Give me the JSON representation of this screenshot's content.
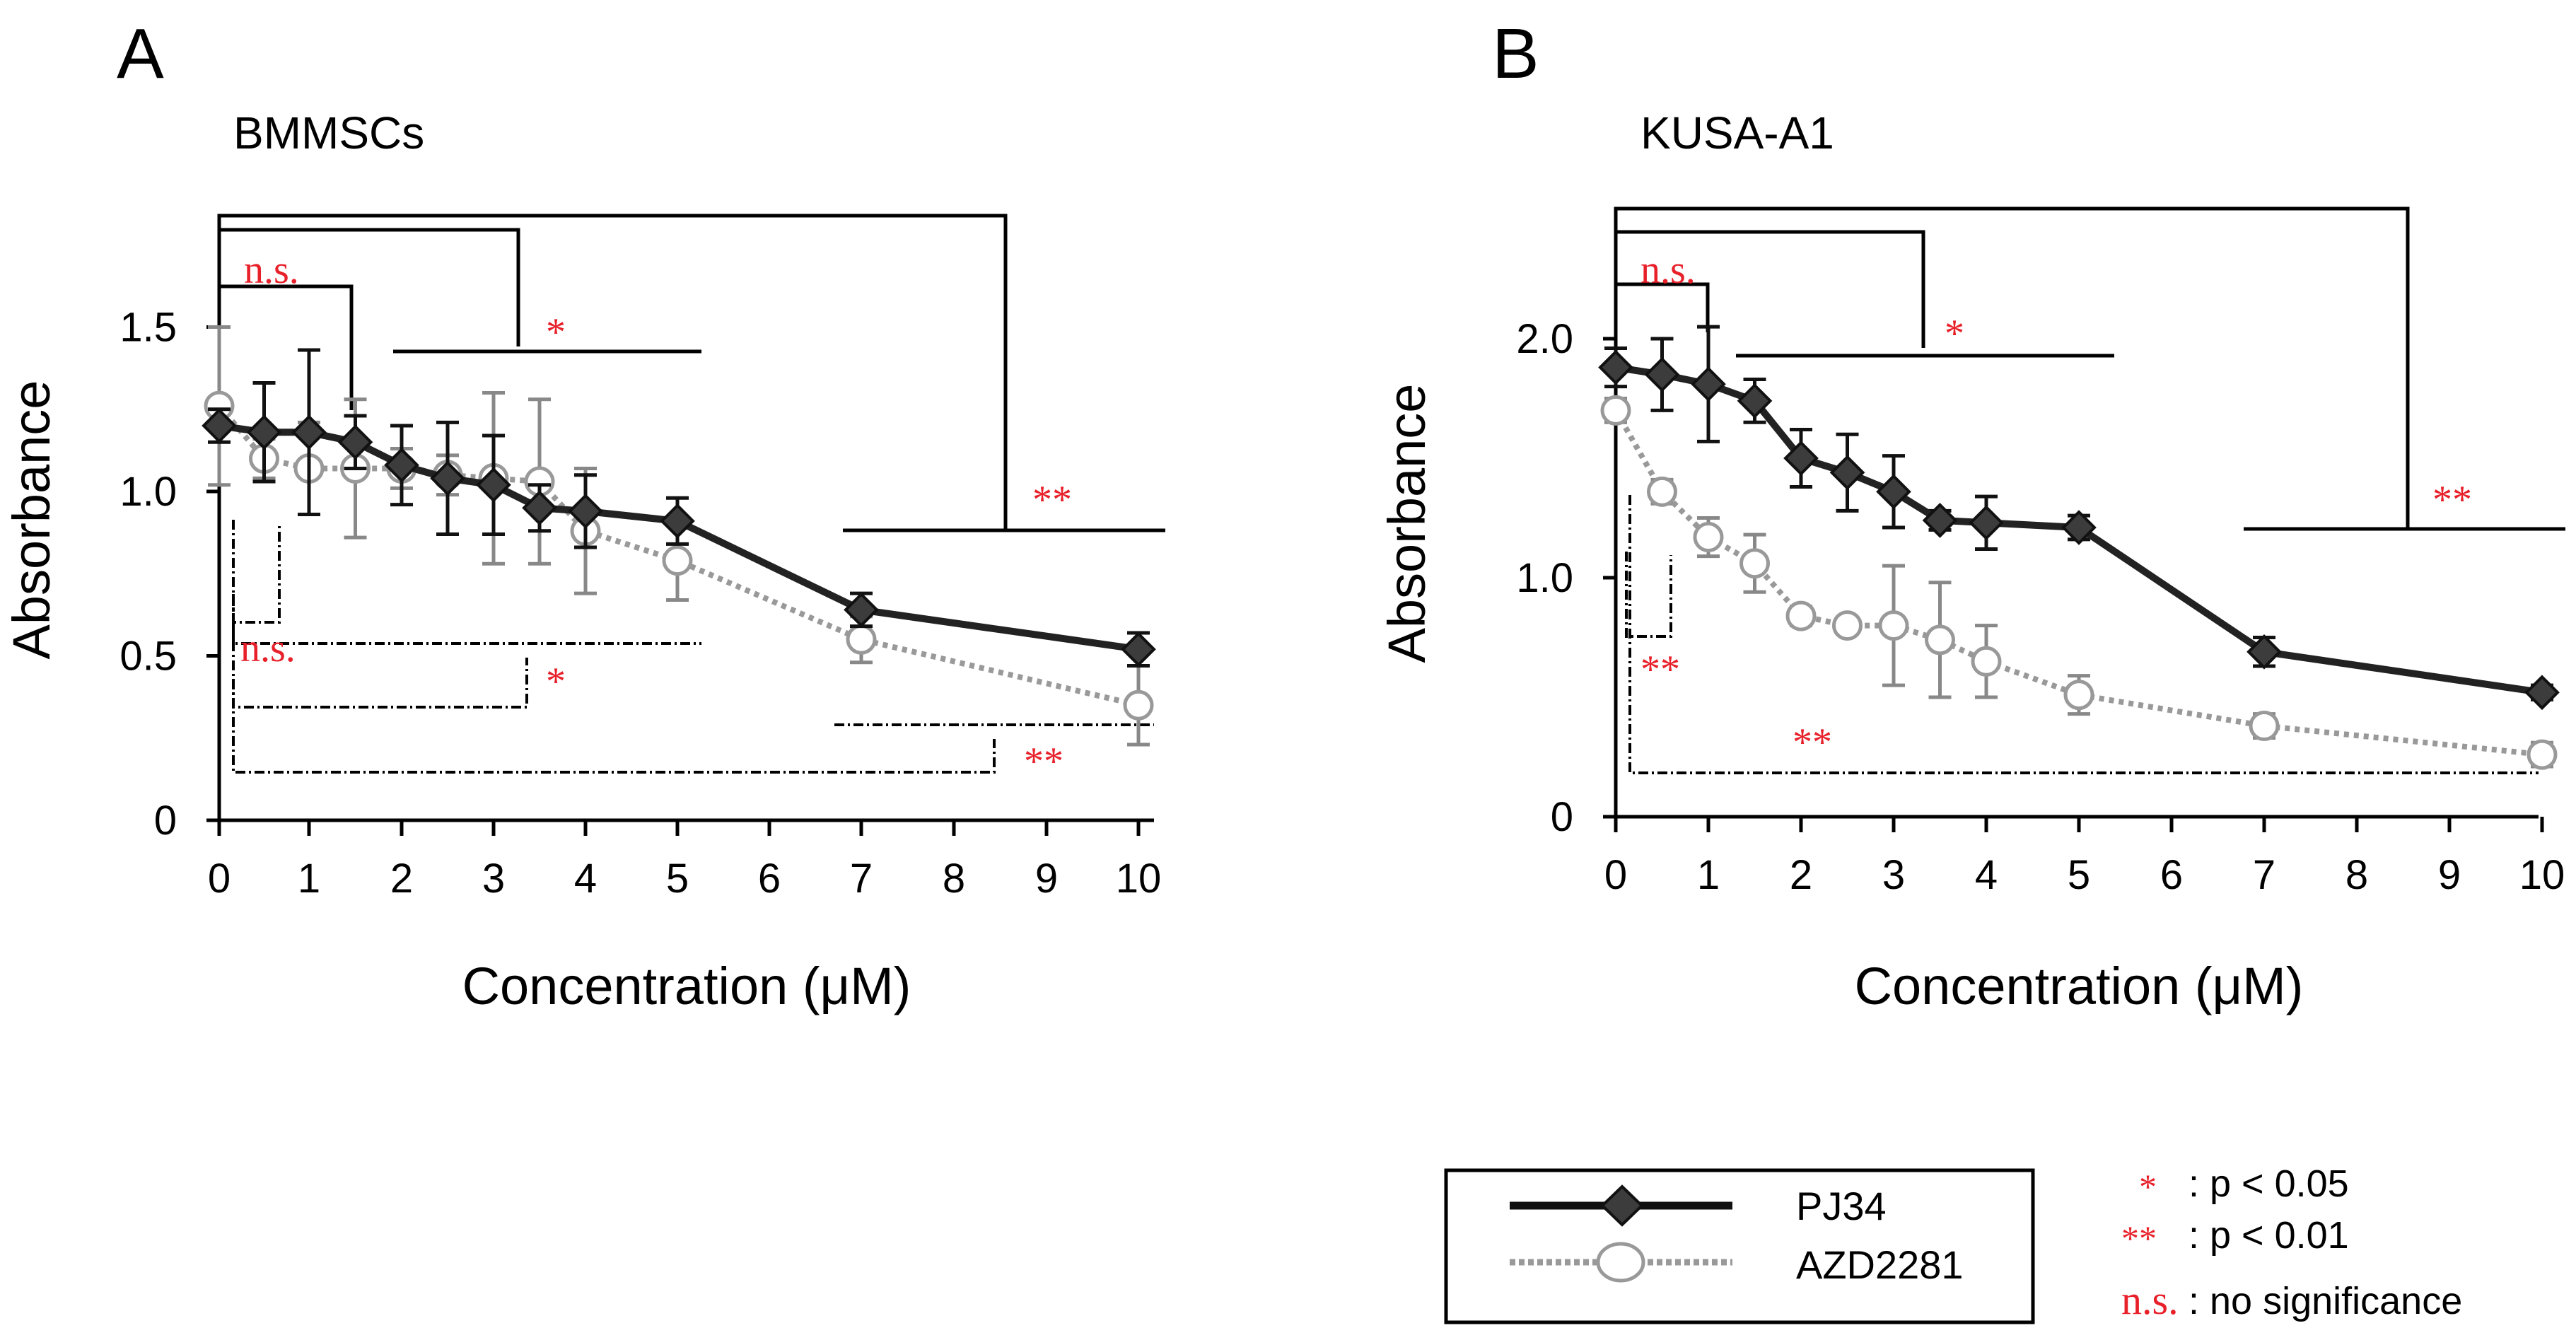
{
  "chart_data": [
    {
      "type": "line",
      "panel_label": "A",
      "title": "BMMSCs",
      "xlabel": "Concentration (μM)",
      "ylabel": "Absorbance",
      "xlim": [
        0,
        10
      ],
      "ylim": [
        0,
        1.8
      ],
      "x_ticks": [
        0,
        1,
        2,
        3,
        4,
        5,
        6,
        7,
        8,
        9,
        10
      ],
      "y_ticks": [
        {
          "value": 0,
          "label": "0"
        },
        {
          "value": 0.5,
          "label": "0.5"
        },
        {
          "value": 1.0,
          "label": "1.0"
        },
        {
          "value": 1.5,
          "label": "1.5"
        }
      ],
      "series": [
        {
          "name": "PJ34",
          "x": [
            0,
            0.5,
            1,
            1.5,
            2,
            2.5,
            3,
            3.5,
            4,
            5,
            7,
            10
          ],
          "y": [
            1.2,
            1.18,
            1.18,
            1.15,
            1.08,
            1.04,
            1.02,
            0.95,
            0.94,
            0.91,
            0.64,
            0.52
          ],
          "err": [
            0.05,
            0.15,
            0.25,
            0.08,
            0.12,
            0.17,
            0.15,
            0.07,
            0.11,
            0.07,
            0.05,
            0.05
          ]
        },
        {
          "name": "AZD2281",
          "x": [
            0,
            0.5,
            1,
            1.5,
            2,
            2.5,
            3,
            3.5,
            4,
            5,
            7,
            10
          ],
          "y": [
            1.26,
            1.1,
            1.07,
            1.07,
            1.07,
            1.05,
            1.04,
            1.03,
            0.88,
            0.79,
            0.55,
            0.35
          ],
          "err": [
            0.24,
            0.06,
            0.14,
            0.21,
            0.06,
            0.06,
            0.26,
            0.25,
            0.19,
            0.12,
            0.07,
            0.12
          ]
        }
      ],
      "significance": [
        {
          "label": "n.s.",
          "style": "solid"
        },
        {
          "label": "*",
          "style": "solid"
        },
        {
          "label": "**",
          "style": "solid"
        },
        {
          "label": "n.s.",
          "style": "dashed"
        },
        {
          "label": "*",
          "style": "dashed"
        },
        {
          "label": "**",
          "style": "dashed"
        }
      ]
    },
    {
      "type": "line",
      "panel_label": "B",
      "title": "KUSA-A1",
      "xlabel": "Concentration (μM)",
      "ylabel": "Absorbance",
      "xlim": [
        0,
        10
      ],
      "ylim": [
        0,
        2.6
      ],
      "x_ticks": [
        0,
        1,
        2,
        3,
        4,
        5,
        6,
        7,
        8,
        9,
        10
      ],
      "y_ticks": [
        {
          "value": 0,
          "label": "0"
        },
        {
          "value": 1.0,
          "label": "1.0"
        },
        {
          "value": 2.0,
          "label": "2.0"
        }
      ],
      "series": [
        {
          "name": "PJ34",
          "x": [
            0,
            0.5,
            1,
            1.5,
            2,
            2.5,
            3,
            3.5,
            4,
            5,
            7,
            10
          ],
          "y": [
            1.88,
            1.85,
            1.81,
            1.74,
            1.5,
            1.44,
            1.36,
            1.24,
            1.23,
            1.21,
            0.69,
            0.52
          ],
          "err": [
            0.08,
            0.15,
            0.24,
            0.09,
            0.12,
            0.16,
            0.15,
            0.04,
            0.11,
            0.05,
            0.06,
            0.03
          ]
        },
        {
          "name": "AZD2281",
          "x": [
            0,
            0.5,
            1,
            1.5,
            2,
            2.5,
            3,
            3.5,
            4,
            5,
            7,
            10
          ],
          "y": [
            1.7,
            1.36,
            1.17,
            1.06,
            0.84,
            0.8,
            0.8,
            0.74,
            0.65,
            0.51,
            0.38,
            0.26
          ],
          "err": [
            0.05,
            0.05,
            0.08,
            0.12,
            0.04,
            0.02,
            0.25,
            0.24,
            0.15,
            0.08,
            0.05,
            0.05
          ]
        }
      ],
      "significance": [
        {
          "label": "n.s.",
          "style": "solid"
        },
        {
          "label": "*",
          "style": "solid"
        },
        {
          "label": "**",
          "style": "solid"
        },
        {
          "label": "**",
          "style": "dashed"
        },
        {
          "label": "**",
          "style": "dashed"
        }
      ]
    }
  ],
  "legend": {
    "entries": [
      {
        "label": "PJ34",
        "line_style": "solid",
        "marker": "filled-diamond"
      },
      {
        "label": "AZD2281",
        "line_style": "dotted",
        "marker": "open-circle"
      }
    ]
  },
  "significance_key": [
    {
      "symbol": "*",
      "description": ": p < 0.05"
    },
    {
      "symbol": "**",
      "description": ": p < 0.01"
    },
    {
      "symbol": "n.s.",
      "description": ": no significance"
    }
  ],
  "colors": {
    "pj34": "#222222",
    "azd2281_line": "#999999",
    "azd2281_marker": "#ffffff",
    "error_pj34": "#111111",
    "error_azd": "#888888",
    "significance_text": "#e8202a",
    "axis": "#000000"
  }
}
